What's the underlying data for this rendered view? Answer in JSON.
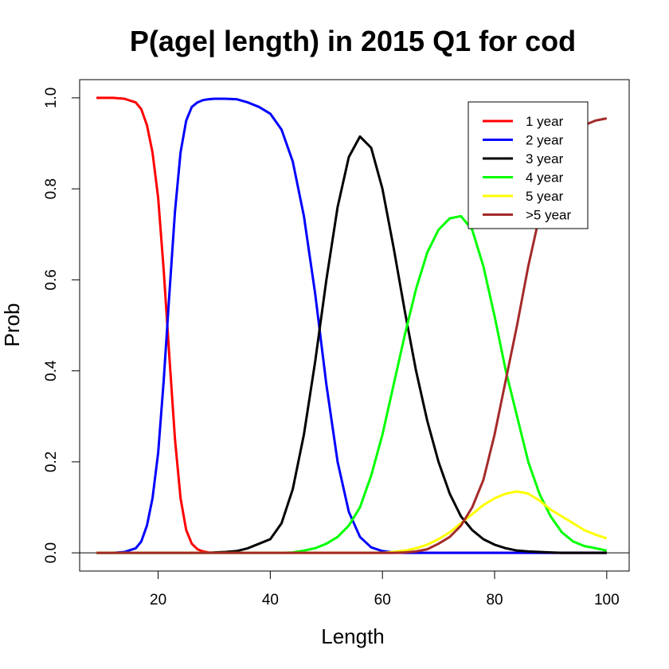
{
  "chart_data": {
    "type": "line",
    "title": "P(age| length) in 2015 Q1 for cod",
    "xlabel": "Length",
    "ylabel": "Prob",
    "xlim": [
      6,
      104
    ],
    "ylim": [
      -0.04,
      1.04
    ],
    "x_ticks": [
      20,
      40,
      60,
      80,
      100
    ],
    "x_tick_labels": [
      "20",
      "40",
      "60",
      "80",
      "100"
    ],
    "y_ticks": [
      0,
      0.2,
      0.4,
      0.6,
      0.8,
      1.0
    ],
    "y_tick_labels": [
      "0.0",
      "0.2",
      "0.4",
      "0.6",
      "0.8",
      "1.0"
    ],
    "hline": 0,
    "grid": false,
    "legend_position": "top-right",
    "x": [
      9,
      12,
      14,
      16,
      17,
      18,
      19,
      20,
      21,
      22,
      23,
      24,
      25,
      26,
      27,
      28,
      29,
      30,
      32,
      34,
      36,
      38,
      40,
      42,
      44,
      46,
      48,
      50,
      52,
      54,
      56,
      58,
      60,
      62,
      64,
      66,
      68,
      70,
      72,
      74,
      76,
      78,
      80,
      82,
      84,
      86,
      88,
      90,
      92,
      94,
      96,
      98,
      100
    ],
    "series": [
      {
        "name": "1 year",
        "color": "#ff0000",
        "values": [
          1.0,
          1.0,
          0.998,
          0.99,
          0.975,
          0.94,
          0.88,
          0.78,
          0.62,
          0.43,
          0.25,
          0.12,
          0.05,
          0.02,
          0.008,
          0.003,
          0.001,
          0,
          0,
          0,
          0,
          0,
          0,
          0,
          0,
          0,
          0,
          0,
          0,
          0,
          0,
          0,
          0,
          0,
          0,
          0,
          0,
          0,
          0,
          0,
          0,
          0,
          0,
          0,
          0,
          0,
          0,
          0,
          0,
          0,
          0,
          0,
          0
        ]
      },
      {
        "name": "2 year",
        "color": "#0000ff",
        "values": [
          0,
          0,
          0.002,
          0.01,
          0.025,
          0.06,
          0.12,
          0.22,
          0.38,
          0.57,
          0.75,
          0.88,
          0.95,
          0.98,
          0.99,
          0.995,
          0.997,
          0.998,
          0.998,
          0.997,
          0.99,
          0.98,
          0.965,
          0.93,
          0.86,
          0.74,
          0.57,
          0.37,
          0.2,
          0.09,
          0.035,
          0.012,
          0.004,
          0.001,
          0,
          0,
          0,
          0,
          0,
          0,
          0,
          0,
          0,
          0,
          0,
          0,
          0,
          0,
          0,
          0,
          0,
          0,
          0
        ]
      },
      {
        "name": "3 year",
        "color": "#000000",
        "values": [
          0,
          0,
          0,
          0,
          0,
          0,
          0,
          0,
          0,
          0,
          0,
          0,
          0,
          0,
          0,
          0,
          0,
          0.001,
          0.002,
          0.004,
          0.01,
          0.02,
          0.03,
          0.065,
          0.14,
          0.26,
          0.42,
          0.6,
          0.76,
          0.87,
          0.915,
          0.89,
          0.8,
          0.67,
          0.53,
          0.4,
          0.29,
          0.2,
          0.13,
          0.08,
          0.05,
          0.03,
          0.018,
          0.01,
          0.005,
          0.003,
          0.002,
          0.001,
          0,
          0,
          0,
          0,
          0
        ]
      },
      {
        "name": "4 year",
        "color": "#00ff00",
        "values": [
          0,
          0,
          0,
          0,
          0,
          0,
          0,
          0,
          0,
          0,
          0,
          0,
          0,
          0,
          0,
          0,
          0,
          0,
          0,
          0,
          0,
          0,
          0,
          0,
          0.001,
          0.005,
          0.01,
          0.02,
          0.035,
          0.06,
          0.1,
          0.17,
          0.26,
          0.37,
          0.48,
          0.58,
          0.66,
          0.71,
          0.735,
          0.74,
          0.71,
          0.63,
          0.52,
          0.4,
          0.3,
          0.2,
          0.13,
          0.08,
          0.045,
          0.025,
          0.015,
          0.01,
          0.005
        ]
      },
      {
        "name": "5 year",
        "color": "#ffff00",
        "values": [
          0,
          0,
          0,
          0,
          0,
          0,
          0,
          0,
          0,
          0,
          0,
          0,
          0,
          0,
          0,
          0,
          0,
          0,
          0,
          0,
          0,
          0,
          0,
          0,
          0,
          0,
          0,
          0,
          0,
          0,
          0,
          0,
          0,
          0.002,
          0.005,
          0.01,
          0.018,
          0.03,
          0.045,
          0.065,
          0.085,
          0.105,
          0.12,
          0.13,
          0.135,
          0.13,
          0.115,
          0.095,
          0.08,
          0.065,
          0.05,
          0.04,
          0.032
        ]
      },
      {
        "name": ">5 year",
        "color": "#a52a2a",
        "values": [
          0,
          0,
          0,
          0,
          0,
          0,
          0,
          0,
          0,
          0,
          0,
          0,
          0,
          0,
          0,
          0,
          0,
          0,
          0,
          0,
          0,
          0,
          0,
          0,
          0,
          0,
          0,
          0,
          0,
          0,
          0,
          0,
          0,
          0,
          0.001,
          0.003,
          0.008,
          0.02,
          0.035,
          0.06,
          0.1,
          0.16,
          0.26,
          0.38,
          0.5,
          0.63,
          0.74,
          0.82,
          0.88,
          0.92,
          0.94,
          0.95,
          0.955
        ]
      }
    ]
  }
}
